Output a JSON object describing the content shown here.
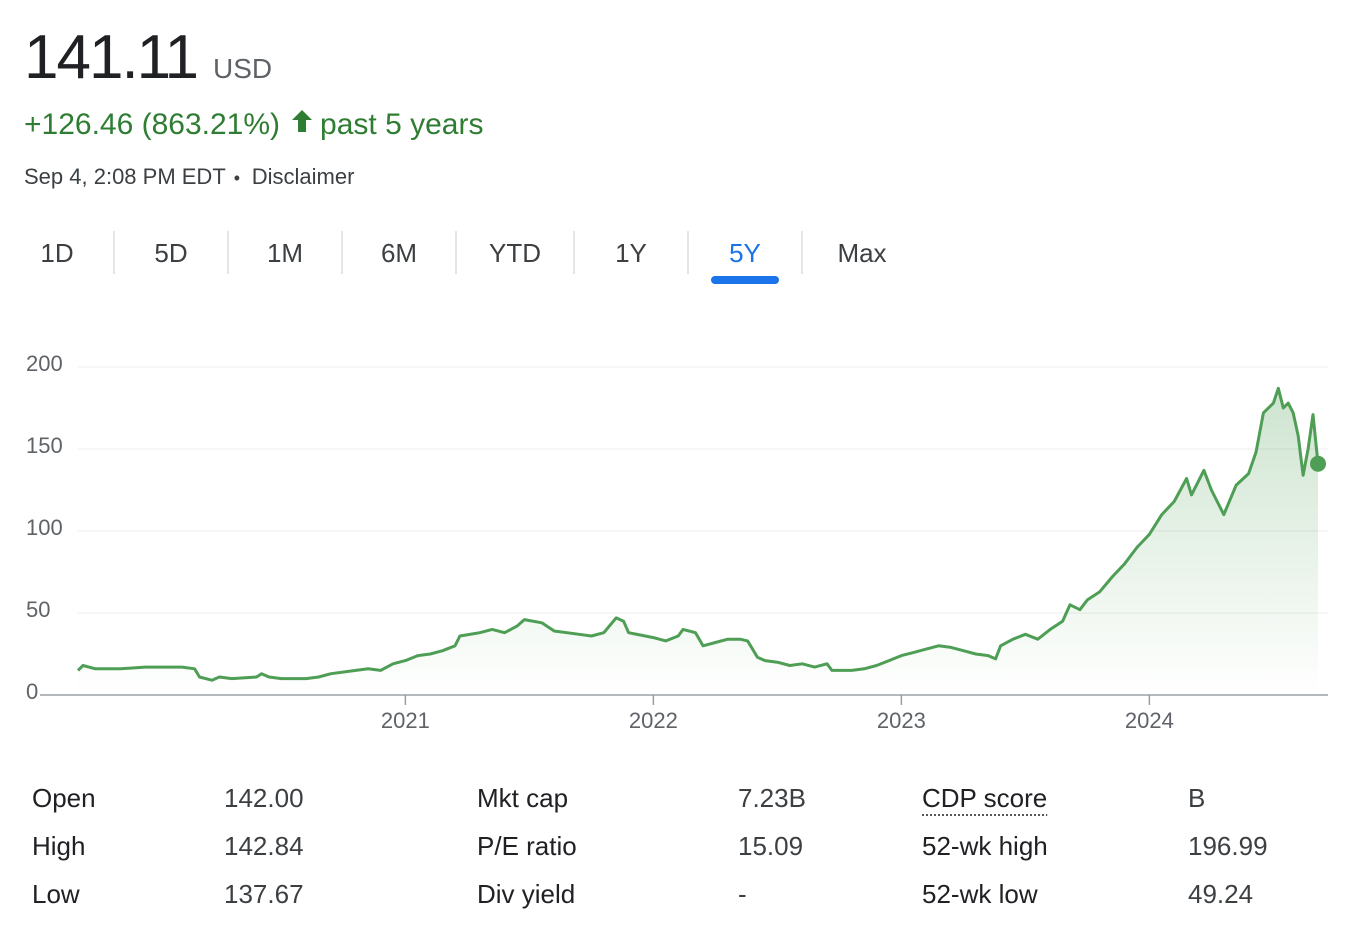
{
  "header": {
    "price": "141.11",
    "currency": "USD",
    "change": "+126.46 (863.21%)",
    "period": "past 5 years",
    "timestamp": "Sep 4, 2:08 PM EDT",
    "separator": "•",
    "disclaimer": "Disclaimer"
  },
  "ranges": [
    "1D",
    "5D",
    "1M",
    "6M",
    "YTD",
    "1Y",
    "5Y",
    "Max"
  ],
  "selected_range": "5Y",
  "chart_data": {
    "type": "line",
    "color": "#4f9e55",
    "x": [
      2019.68,
      2019.7,
      2019.75,
      2019.85,
      2019.95,
      2020.0,
      2020.1,
      2020.15,
      2020.17,
      2020.22,
      2020.25,
      2020.3,
      2020.4,
      2020.42,
      2020.45,
      2020.5,
      2020.6,
      2020.65,
      2020.7,
      2020.8,
      2020.85,
      2020.9,
      2020.95,
      2021.0,
      2021.05,
      2021.1,
      2021.15,
      2021.2,
      2021.22,
      2021.3,
      2021.35,
      2021.4,
      2021.45,
      2021.48,
      2021.55,
      2021.6,
      2021.7,
      2021.75,
      2021.8,
      2021.85,
      2021.88,
      2021.9,
      2022.0,
      2022.05,
      2022.1,
      2022.12,
      2022.17,
      2022.2,
      2022.25,
      2022.3,
      2022.35,
      2022.38,
      2022.42,
      2022.45,
      2022.5,
      2022.55,
      2022.6,
      2022.65,
      2022.7,
      2022.72,
      2022.8,
      2022.85,
      2022.9,
      2022.95,
      2023.0,
      2023.05,
      2023.1,
      2023.15,
      2023.2,
      2023.25,
      2023.3,
      2023.35,
      2023.38,
      2023.4,
      2023.45,
      2023.5,
      2023.55,
      2023.6,
      2023.65,
      2023.68,
      2023.72,
      2023.75,
      2023.8,
      2023.85,
      2023.9,
      2023.95,
      2024.0,
      2024.05,
      2024.1,
      2024.15,
      2024.17,
      2024.22,
      2024.25,
      2024.3,
      2024.35,
      2024.4,
      2024.43,
      2024.46,
      2024.5,
      2024.52,
      2024.54,
      2024.56,
      2024.58,
      2024.6,
      2024.62,
      2024.64,
      2024.66,
      2024.68
    ],
    "values": [
      15,
      18,
      16,
      16,
      17,
      17,
      17,
      16,
      11,
      9,
      11,
      10,
      11,
      13,
      11,
      10,
      10,
      11,
      13,
      15,
      16,
      15,
      19,
      21,
      24,
      25,
      27,
      30,
      36,
      38,
      40,
      38,
      42,
      46,
      44,
      39,
      37,
      36,
      38,
      47,
      45,
      38,
      35,
      33,
      36,
      40,
      38,
      30,
      32,
      34,
      34,
      33,
      23,
      21,
      20,
      18,
      19,
      17,
      19,
      15,
      15,
      16,
      18,
      21,
      24,
      26,
      28,
      30,
      29,
      27,
      25,
      24,
      22,
      30,
      34,
      37,
      34,
      40,
      45,
      55,
      52,
      58,
      63,
      72,
      80,
      90,
      98,
      110,
      118,
      132,
      122,
      137,
      125,
      110,
      128,
      135,
      148,
      172,
      178,
      187,
      175,
      178,
      172,
      158,
      134,
      150,
      171,
      141
    ],
    "xlim": [
      2019.68,
      2024.68
    ],
    "xticks": [
      2021,
      2022,
      2023,
      2024
    ],
    "ylim": [
      0,
      200
    ],
    "yticks": [
      0,
      50,
      100,
      150,
      200
    ],
    "grid": true
  },
  "stats": {
    "rows": [
      [
        "Open",
        "142.00",
        "Mkt cap",
        "7.23B",
        "CDP score",
        "B"
      ],
      [
        "High",
        "142.84",
        "P/E ratio",
        "15.09",
        "52-wk high",
        "196.99"
      ],
      [
        "Low",
        "137.67",
        "Div yield",
        "-",
        "52-wk low",
        "49.24"
      ]
    ]
  }
}
